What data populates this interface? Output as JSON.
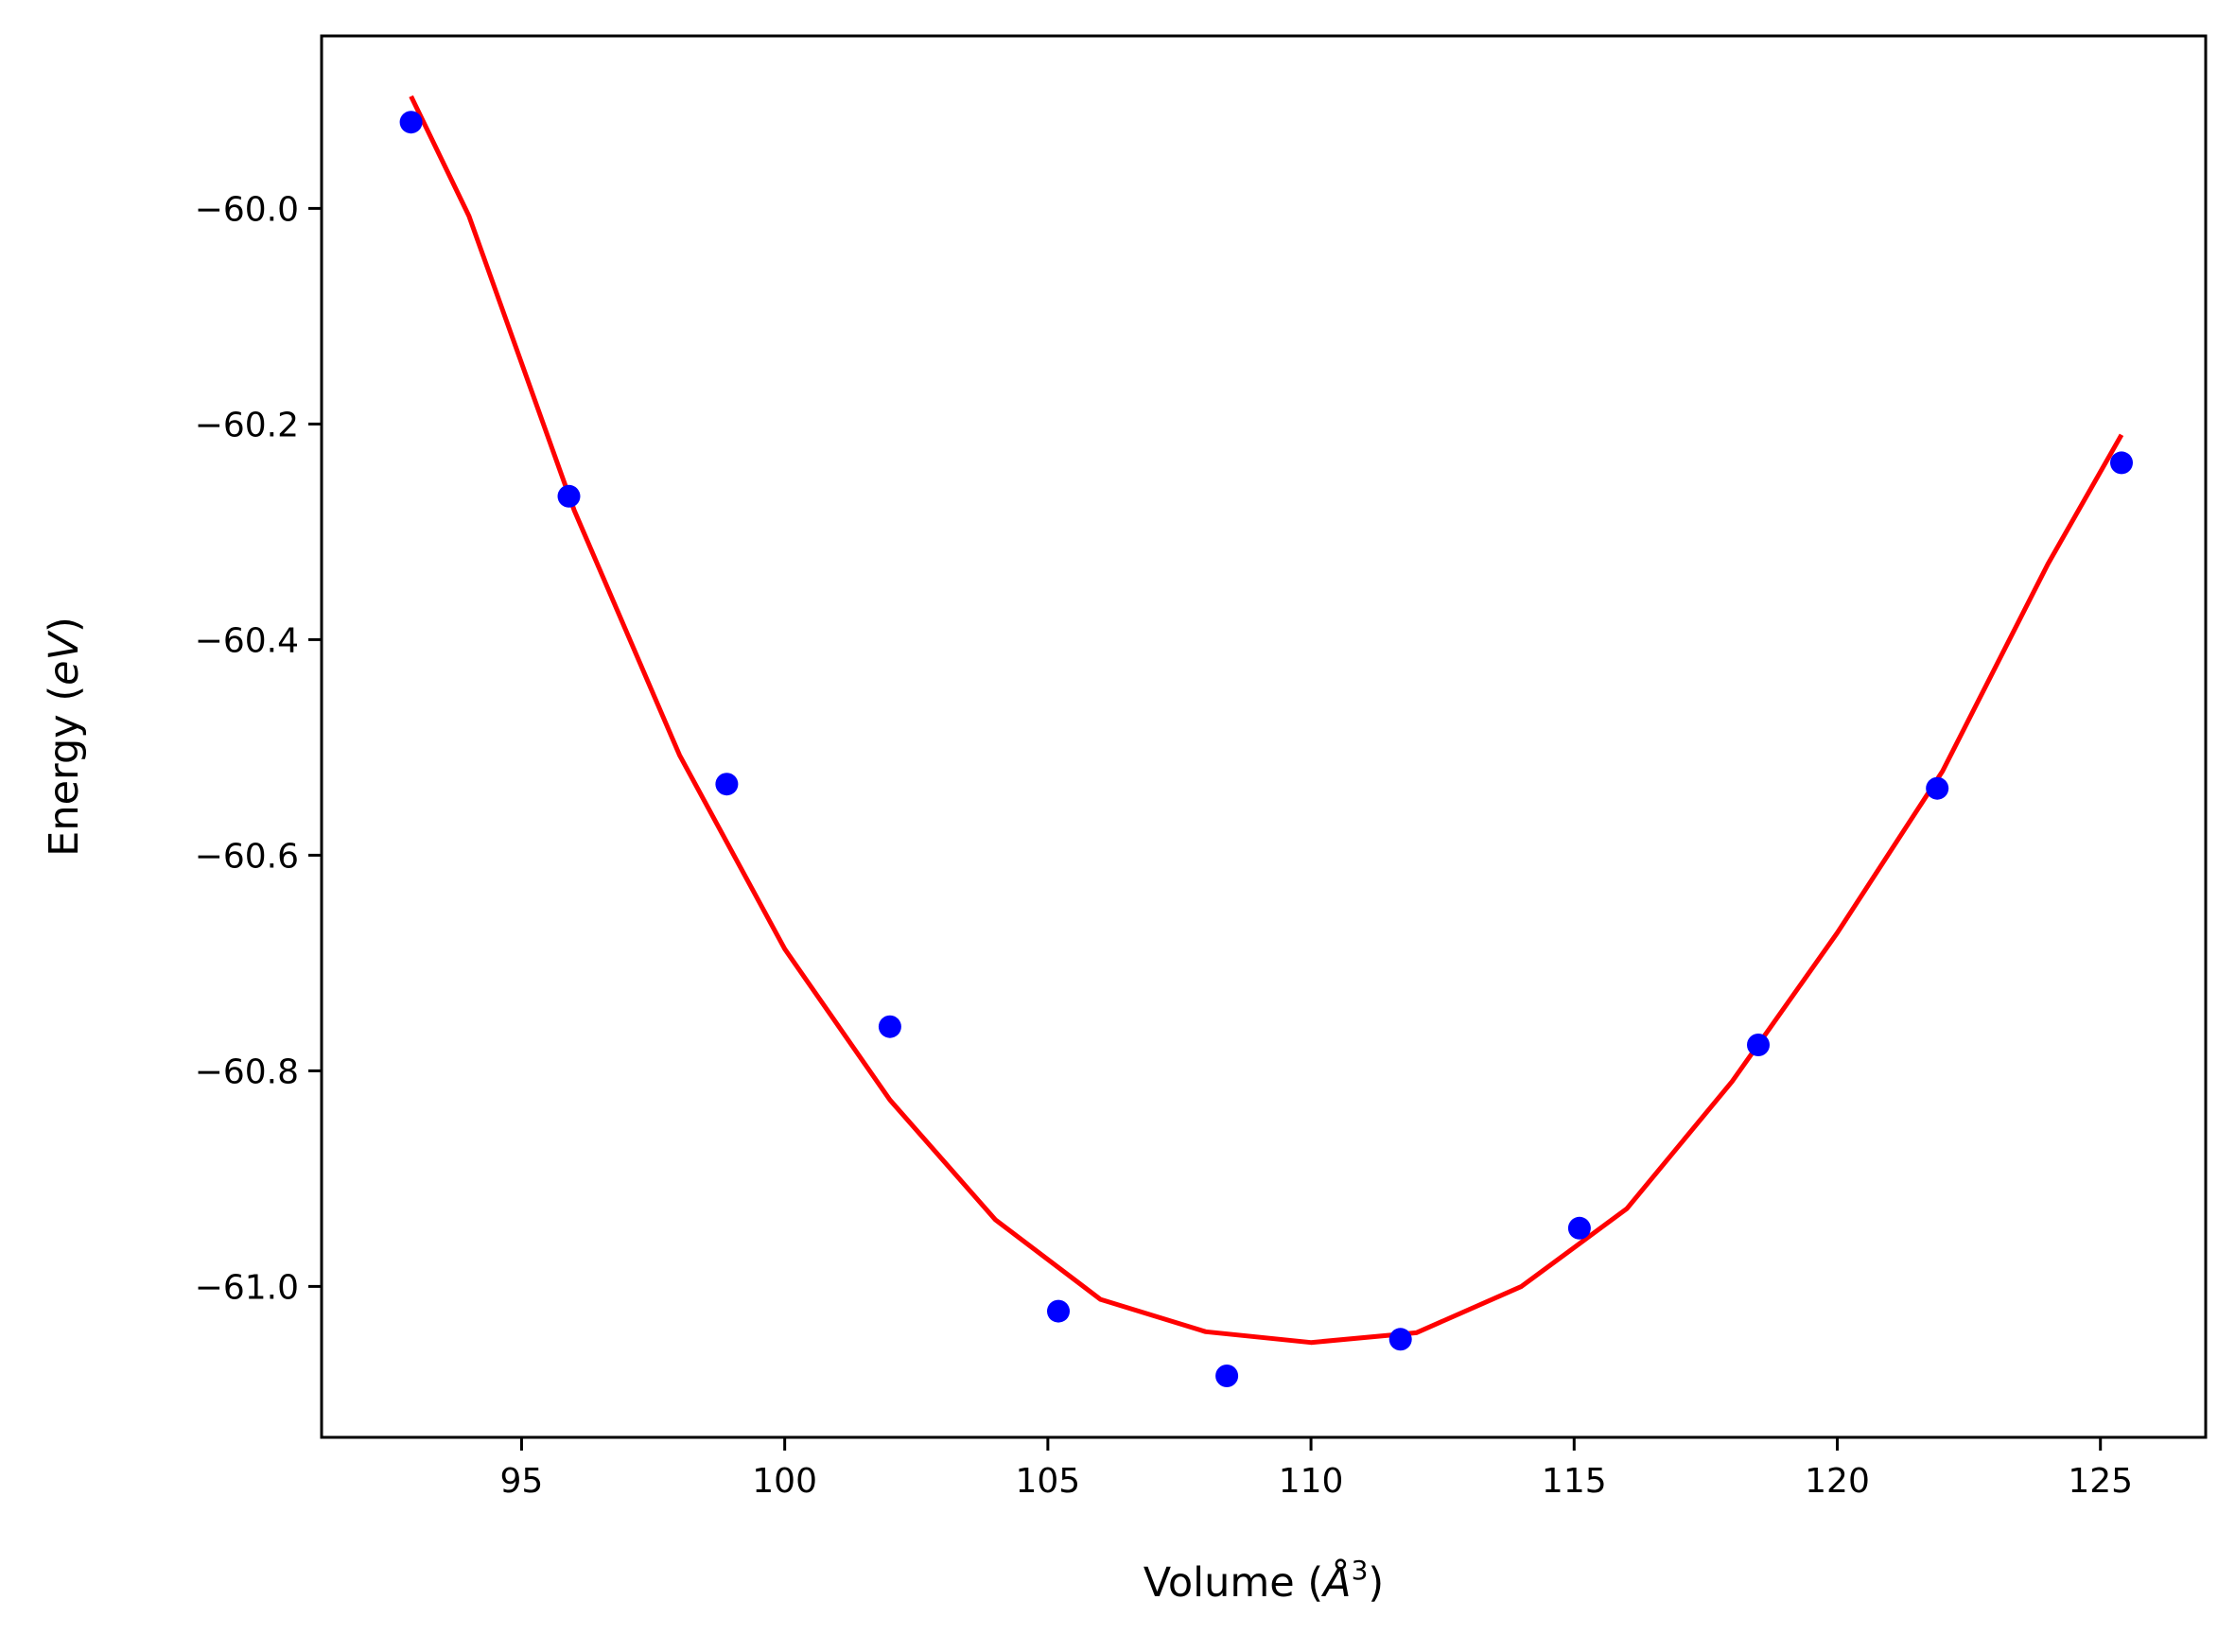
{
  "chart_data": {
    "type": "scatter",
    "title": "",
    "xlabel": {
      "pre": "Volume (",
      "sym": "Å",
      "sup": "3",
      "post": ")"
    },
    "ylabel": {
      "pre": "Energy (",
      "sym": "eV",
      "post": ")"
    },
    "xlim": [
      91.2,
      127.0
    ],
    "ylim": [
      -61.14,
      -59.84
    ],
    "xticks": [
      95,
      100,
      105,
      110,
      115,
      120,
      125
    ],
    "yticks": [
      -60.0,
      -60.2,
      -60.4,
      -60.6,
      -60.8,
      -61.0
    ],
    "xtick_labels": [
      "95",
      "100",
      "105",
      "110",
      "115",
      "120",
      "125"
    ],
    "ytick_labels": [
      "−60.0",
      "−60.2",
      "−60.4",
      "−60.6",
      "−60.8",
      "−61.0"
    ],
    "grid": false,
    "series": [
      {
        "kind": "points",
        "color": "#0000ff",
        "x": [
          92.9,
          95.9,
          98.9,
          102.0,
          105.2,
          108.4,
          111.7,
          115.1,
          118.5,
          121.9,
          125.4
        ],
        "y": [
          -59.92,
          -60.267,
          -60.534,
          -60.759,
          -61.023,
          -61.083,
          -61.049,
          -60.946,
          -60.776,
          -60.538,
          -60.236
        ]
      },
      {
        "kind": "fit",
        "color": "#ff0000",
        "x": [
          92.9,
          94.0,
          96.0,
          98.0,
          100.0,
          102.0,
          104.0,
          106.0,
          108.0,
          110.0,
          112.0,
          114.0,
          116.0,
          118.0,
          120.0,
          122.0,
          124.0,
          125.4
        ],
        "y": [
          -59.896,
          -60.007,
          -60.28,
          -60.507,
          -60.687,
          -60.827,
          -60.938,
          -61.012,
          -61.042,
          -61.052,
          -61.043,
          -61.0,
          -60.928,
          -60.81,
          -60.672,
          -60.522,
          -60.33,
          -60.21
        ]
      }
    ]
  }
}
